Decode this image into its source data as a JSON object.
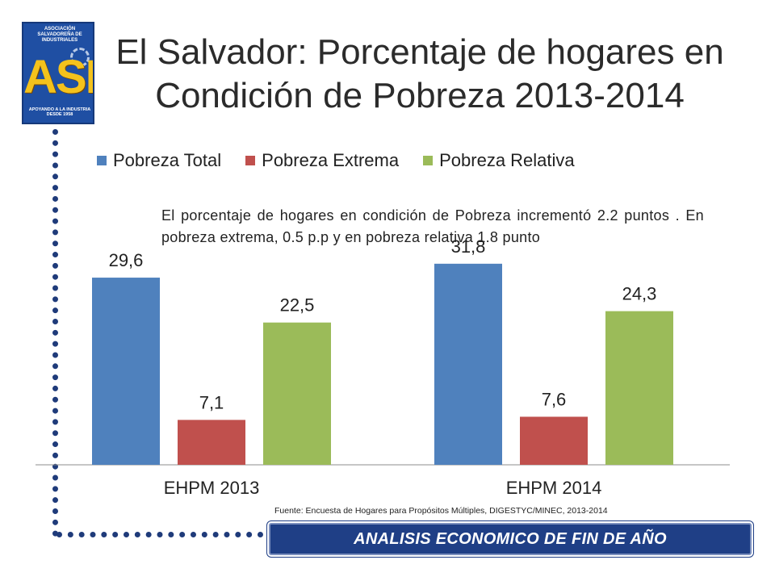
{
  "title": "El Salvador: Porcentaje de hogares en Condición de Pobreza 2013-2014",
  "logo": {
    "top_text": "ASOCIACIÓN SALVADOREÑA DE INDUSTRIALES",
    "letters": "ASI",
    "bottom_text": "APOYANDO A LA INDUSTRIA",
    "since": "DESDE 1958"
  },
  "note": "El porcentaje de hogares en condición de Pobreza incrementó 2.2 puntos . En pobreza extrema, 0.5 p.p y en pobreza relativa 1.8 punto",
  "source": "Fuente: Encuesta de Hogares para Propósitos Múltiples, DIGESTYC/MINEC, 2013-2014",
  "banner": "ANALISIS ECONOMICO DE FIN DE AÑO",
  "chart_data": {
    "type": "bar",
    "title": "El Salvador: Porcentaje de hogares en Condición de Pobreza 2013-2014",
    "categories": [
      "EHPM 2013",
      "EHPM 2014"
    ],
    "series": [
      {
        "name": "Pobreza Total",
        "color": "#4f81bd",
        "values": [
          29.6,
          31.8
        ],
        "labels": [
          "29,6",
          "31,8"
        ]
      },
      {
        "name": "Pobreza Extrema",
        "color": "#c0504d",
        "values": [
          7.1,
          7.6
        ],
        "labels": [
          "7,1",
          "7,6"
        ]
      },
      {
        "name": "Pobreza Relativa",
        "color": "#9bbb59",
        "values": [
          22.5,
          24.3
        ],
        "labels": [
          "22,5",
          "24,3"
        ]
      }
    ],
    "xlabel": "",
    "ylabel": "",
    "ylim": [
      0,
      40
    ],
    "legend": "top",
    "grid": false
  }
}
